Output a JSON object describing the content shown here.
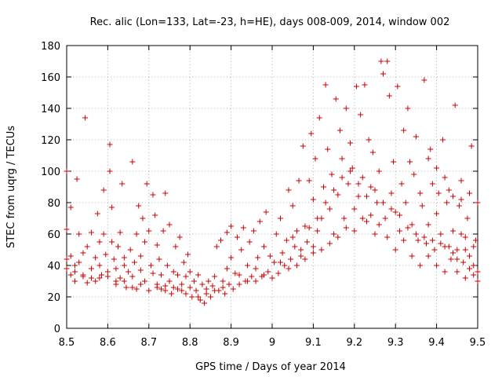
{
  "chart_data": {
    "type": "scatter",
    "title": "Rec. alic (Lon=133, Lat=-23, h=HE), days 008-009, 2014, window 002",
    "xlabel": "GPS time / Days of year 2014",
    "ylabel": "STEC from uqrg / TECUs",
    "xlim": [
      8.5,
      9.5
    ],
    "ylim": [
      0,
      180
    ],
    "xticks": [
      8.5,
      8.6,
      8.7,
      8.8,
      8.9,
      9.0,
      9.1,
      9.2,
      9.3,
      9.4,
      9.5
    ],
    "xtick_labels": [
      "8.5",
      "8.6",
      "8.7",
      "8.8",
      "8.9",
      "9",
      "9.1",
      "9.2",
      "9.3",
      "9.4",
      "9.5"
    ],
    "yticks": [
      0,
      20,
      40,
      60,
      80,
      100,
      120,
      140,
      160,
      180
    ],
    "ytick_labels": [
      "0",
      "20",
      "40",
      "60",
      "80",
      "100",
      "120",
      "140",
      "160",
      "180"
    ],
    "marker": "+",
    "color": "#cc0000",
    "series": [
      {
        "name": "STEC",
        "points": [
          [
            8.5,
            38
          ],
          [
            8.5,
            44
          ],
          [
            8.5,
            63
          ],
          [
            8.5,
            100
          ],
          [
            8.51,
            77
          ],
          [
            8.51,
            34
          ],
          [
            8.51,
            46
          ],
          [
            8.52,
            30
          ],
          [
            8.52,
            36
          ],
          [
            8.525,
            95
          ],
          [
            8.53,
            60
          ],
          [
            8.53,
            42
          ],
          [
            8.54,
            48
          ],
          [
            8.54,
            33
          ],
          [
            8.545,
            134
          ],
          [
            8.55,
            29
          ],
          [
            8.55,
            52
          ],
          [
            8.56,
            38
          ],
          [
            8.56,
            61
          ],
          [
            8.57,
            45
          ],
          [
            8.57,
            30
          ],
          [
            8.575,
            73
          ],
          [
            8.58,
            40
          ],
          [
            8.58,
            55
          ],
          [
            8.585,
            34
          ],
          [
            8.59,
            88
          ],
          [
            8.59,
            60
          ],
          [
            8.595,
            47
          ],
          [
            8.6,
            36
          ],
          [
            8.6,
            33
          ],
          [
            8.605,
            117
          ],
          [
            8.605,
            100
          ],
          [
            8.61,
            55
          ],
          [
            8.61,
            77
          ],
          [
            8.615,
            44
          ],
          [
            8.62,
            38
          ],
          [
            8.62,
            28
          ],
          [
            8.625,
            52
          ],
          [
            8.63,
            61
          ],
          [
            8.63,
            32
          ],
          [
            8.635,
            92
          ],
          [
            8.64,
            40
          ],
          [
            8.64,
            45
          ],
          [
            8.645,
            26
          ],
          [
            8.65,
            36
          ],
          [
            8.655,
            50
          ],
          [
            8.66,
            106
          ],
          [
            8.66,
            33
          ],
          [
            8.665,
            42
          ],
          [
            8.67,
            60
          ],
          [
            8.67,
            25
          ],
          [
            8.675,
            78
          ],
          [
            8.68,
            37
          ],
          [
            8.68,
            46
          ],
          [
            8.685,
            70
          ],
          [
            8.69,
            30
          ],
          [
            8.69,
            55
          ],
          [
            8.695,
            92
          ],
          [
            8.7,
            62
          ],
          [
            8.7,
            24
          ],
          [
            8.705,
            40
          ],
          [
            8.71,
            85
          ],
          [
            8.71,
            35
          ],
          [
            8.715,
            72
          ],
          [
            8.72,
            28
          ],
          [
            8.72,
            53
          ],
          [
            8.725,
            44
          ],
          [
            8.73,
            25
          ],
          [
            8.73,
            34
          ],
          [
            8.735,
            62
          ],
          [
            8.74,
            86
          ],
          [
            8.74,
            27
          ],
          [
            8.745,
            40
          ],
          [
            8.75,
            66
          ],
          [
            8.75,
            30
          ],
          [
            8.755,
            22
          ],
          [
            8.76,
            36
          ],
          [
            8.765,
            52
          ],
          [
            8.77,
            25
          ],
          [
            8.77,
            34
          ],
          [
            8.775,
            58
          ],
          [
            8.78,
            28
          ],
          [
            8.785,
            42
          ],
          [
            8.79,
            22
          ],
          [
            8.79,
            33
          ],
          [
            8.795,
            47
          ],
          [
            8.8,
            26
          ],
          [
            8.8,
            36
          ],
          [
            8.805,
            20
          ],
          [
            8.81,
            30
          ],
          [
            8.815,
            24
          ],
          [
            8.82,
            34
          ],
          [
            8.825,
            18
          ],
          [
            8.83,
            28
          ],
          [
            8.835,
            16
          ],
          [
            8.84,
            25
          ],
          [
            8.845,
            30
          ],
          [
            8.85,
            20
          ],
          [
            8.855,
            27
          ],
          [
            8.86,
            33
          ],
          [
            8.865,
            52
          ],
          [
            8.87,
            24
          ],
          [
            8.875,
            56
          ],
          [
            8.88,
            30
          ],
          [
            8.885,
            22
          ],
          [
            8.89,
            38
          ],
          [
            8.89,
            61
          ],
          [
            8.895,
            28
          ],
          [
            8.9,
            45
          ],
          [
            8.9,
            65
          ],
          [
            8.905,
            25
          ],
          [
            8.91,
            35
          ],
          [
            8.915,
            58
          ],
          [
            8.92,
            28
          ],
          [
            8.925,
            50
          ],
          [
            8.93,
            64
          ],
          [
            8.935,
            30
          ],
          [
            8.94,
            40
          ],
          [
            8.945,
            55
          ],
          [
            8.95,
            33
          ],
          [
            8.955,
            62
          ],
          [
            8.96,
            30
          ],
          [
            8.965,
            45
          ],
          [
            8.97,
            68
          ],
          [
            8.975,
            33
          ],
          [
            8.98,
            52
          ],
          [
            8.985,
            74
          ],
          [
            8.99,
            36
          ],
          [
            8.995,
            46
          ],
          [
            9.0,
            32
          ],
          [
            9.005,
            42
          ],
          [
            9.01,
            60
          ],
          [
            9.015,
            35
          ],
          [
            9.02,
            70
          ],
          [
            9.025,
            48
          ],
          [
            9.03,
            40
          ],
          [
            9.035,
            56
          ],
          [
            9.04,
            88
          ],
          [
            9.045,
            44
          ],
          [
            9.05,
            78
          ],
          [
            9.055,
            52
          ],
          [
            9.06,
            62
          ],
          [
            9.065,
            94
          ],
          [
            9.07,
            46
          ],
          [
            9.075,
            116
          ],
          [
            9.08,
            65
          ],
          [
            9.085,
            55
          ],
          [
            9.09,
            94
          ],
          [
            9.095,
            124
          ],
          [
            9.1,
            48
          ],
          [
            9.1,
            82
          ],
          [
            9.105,
            108
          ],
          [
            9.11,
            62
          ],
          [
            9.115,
            134
          ],
          [
            9.12,
            70
          ],
          [
            9.125,
            90
          ],
          [
            9.13,
            155
          ],
          [
            9.135,
            114
          ],
          [
            9.14,
            76
          ],
          [
            9.145,
            98
          ],
          [
            9.15,
            60
          ],
          [
            9.155,
            146
          ],
          [
            9.16,
            85
          ],
          [
            9.165,
            126
          ],
          [
            9.17,
            108
          ],
          [
            9.175,
            70
          ],
          [
            9.18,
            140
          ],
          [
            9.185,
            92
          ],
          [
            9.19,
            118
          ],
          [
            9.195,
            102
          ],
          [
            9.2,
            76
          ],
          [
            9.2,
            62
          ],
          [
            9.205,
            154
          ],
          [
            9.21,
            84
          ],
          [
            9.215,
            136
          ],
          [
            9.22,
            96
          ],
          [
            9.225,
            155
          ],
          [
            9.23,
            68
          ],
          [
            9.235,
            120
          ],
          [
            9.24,
            90
          ],
          [
            9.245,
            112
          ],
          [
            9.25,
            60
          ],
          [
            9.255,
            80
          ],
          [
            9.26,
            100
          ],
          [
            9.265,
            170
          ],
          [
            9.27,
            162
          ],
          [
            9.275,
            70
          ],
          [
            9.28,
            170
          ],
          [
            9.285,
            148
          ],
          [
            9.29,
            86
          ],
          [
            9.295,
            106
          ],
          [
            9.3,
            74
          ],
          [
            9.305,
            154
          ],
          [
            9.31,
            62
          ],
          [
            9.315,
            92
          ],
          [
            9.32,
            126
          ],
          [
            9.325,
            80
          ],
          [
            9.33,
            140
          ],
          [
            9.335,
            106
          ],
          [
            9.34,
            66
          ],
          [
            9.345,
            98
          ],
          [
            9.35,
            122
          ],
          [
            9.355,
            56
          ],
          [
            9.36,
            86
          ],
          [
            9.365,
            78
          ],
          [
            9.37,
            158
          ],
          [
            9.375,
            54
          ],
          [
            9.38,
            66
          ],
          [
            9.385,
            114
          ],
          [
            9.39,
            92
          ],
          [
            9.395,
            50
          ],
          [
            9.4,
            73
          ],
          [
            9.405,
            86
          ],
          [
            9.41,
            60
          ],
          [
            9.415,
            120
          ],
          [
            9.42,
            52
          ],
          [
            9.425,
            80
          ],
          [
            9.43,
            88
          ],
          [
            9.435,
            44
          ],
          [
            9.44,
            62
          ],
          [
            9.445,
            142
          ],
          [
            9.45,
            50
          ],
          [
            9.455,
            78
          ],
          [
            9.46,
            94
          ],
          [
            9.465,
            42
          ],
          [
            9.47,
            58
          ],
          [
            9.475,
            70
          ],
          [
            9.48,
            46
          ],
          [
            9.485,
            116
          ],
          [
            9.49,
            40
          ],
          [
            9.495,
            56
          ],
          [
            9.5,
            36
          ],
          [
            9.5,
            80
          ],
          [
            9.36,
            40
          ],
          [
            9.38,
            46
          ],
          [
            9.42,
            36
          ],
          [
            9.44,
            48
          ],
          [
            9.46,
            60
          ],
          [
            9.48,
            38
          ],
          [
            9.5,
            30
          ],
          [
            9.46,
            82
          ],
          [
            9.48,
            86
          ],
          [
            9.44,
            84
          ],
          [
            9.42,
            96
          ],
          [
            9.4,
            102
          ],
          [
            9.38,
            108
          ],
          [
            9.4,
            40
          ],
          [
            9.45,
            36
          ],
          [
            9.47,
            32
          ],
          [
            9.49,
            34
          ],
          [
            9.3,
            50
          ],
          [
            9.32,
            56
          ],
          [
            9.34,
            46
          ],
          [
            9.28,
            58
          ],
          [
            9.26,
            66
          ],
          [
            9.24,
            72
          ],
          [
            9.22,
            70
          ],
          [
            9.18,
            64
          ],
          [
            9.16,
            58
          ],
          [
            9.14,
            54
          ],
          [
            9.12,
            50
          ],
          [
            9.1,
            52
          ],
          [
            9.08,
            44
          ],
          [
            9.06,
            40
          ],
          [
            9.04,
            38
          ],
          [
            9.02,
            42
          ],
          [
            8.98,
            34
          ],
          [
            8.96,
            38
          ],
          [
            8.94,
            30
          ],
          [
            8.92,
            34
          ],
          [
            8.88,
            26
          ],
          [
            8.86,
            24
          ],
          [
            8.84,
            22
          ],
          [
            8.82,
            20
          ],
          [
            8.78,
            24
          ],
          [
            8.76,
            26
          ],
          [
            8.74,
            24
          ],
          [
            8.72,
            26
          ],
          [
            8.68,
            28
          ],
          [
            8.66,
            26
          ],
          [
            8.64,
            30
          ],
          [
            8.62,
            30
          ],
          [
            8.58,
            32
          ],
          [
            8.56,
            32
          ],
          [
            8.54,
            34
          ],
          [
            8.52,
            40
          ],
          [
            9.05,
            58
          ],
          [
            9.07,
            50
          ],
          [
            9.09,
            64
          ],
          [
            9.11,
            70
          ],
          [
            9.13,
            80
          ],
          [
            9.15,
            88
          ],
          [
            9.17,
            96
          ],
          [
            9.19,
            100
          ],
          [
            9.21,
            92
          ],
          [
            9.23,
            84
          ],
          [
            9.25,
            88
          ],
          [
            9.27,
            80
          ],
          [
            9.29,
            76
          ],
          [
            9.31,
            72
          ],
          [
            9.33,
            64
          ],
          [
            9.35,
            60
          ],
          [
            9.37,
            58
          ],
          [
            9.39,
            56
          ],
          [
            9.41,
            54
          ],
          [
            9.43,
            52
          ],
          [
            9.45,
            44
          ],
          [
            9.47,
            50
          ],
          [
            9.49,
            52
          ]
        ]
      }
    ]
  }
}
